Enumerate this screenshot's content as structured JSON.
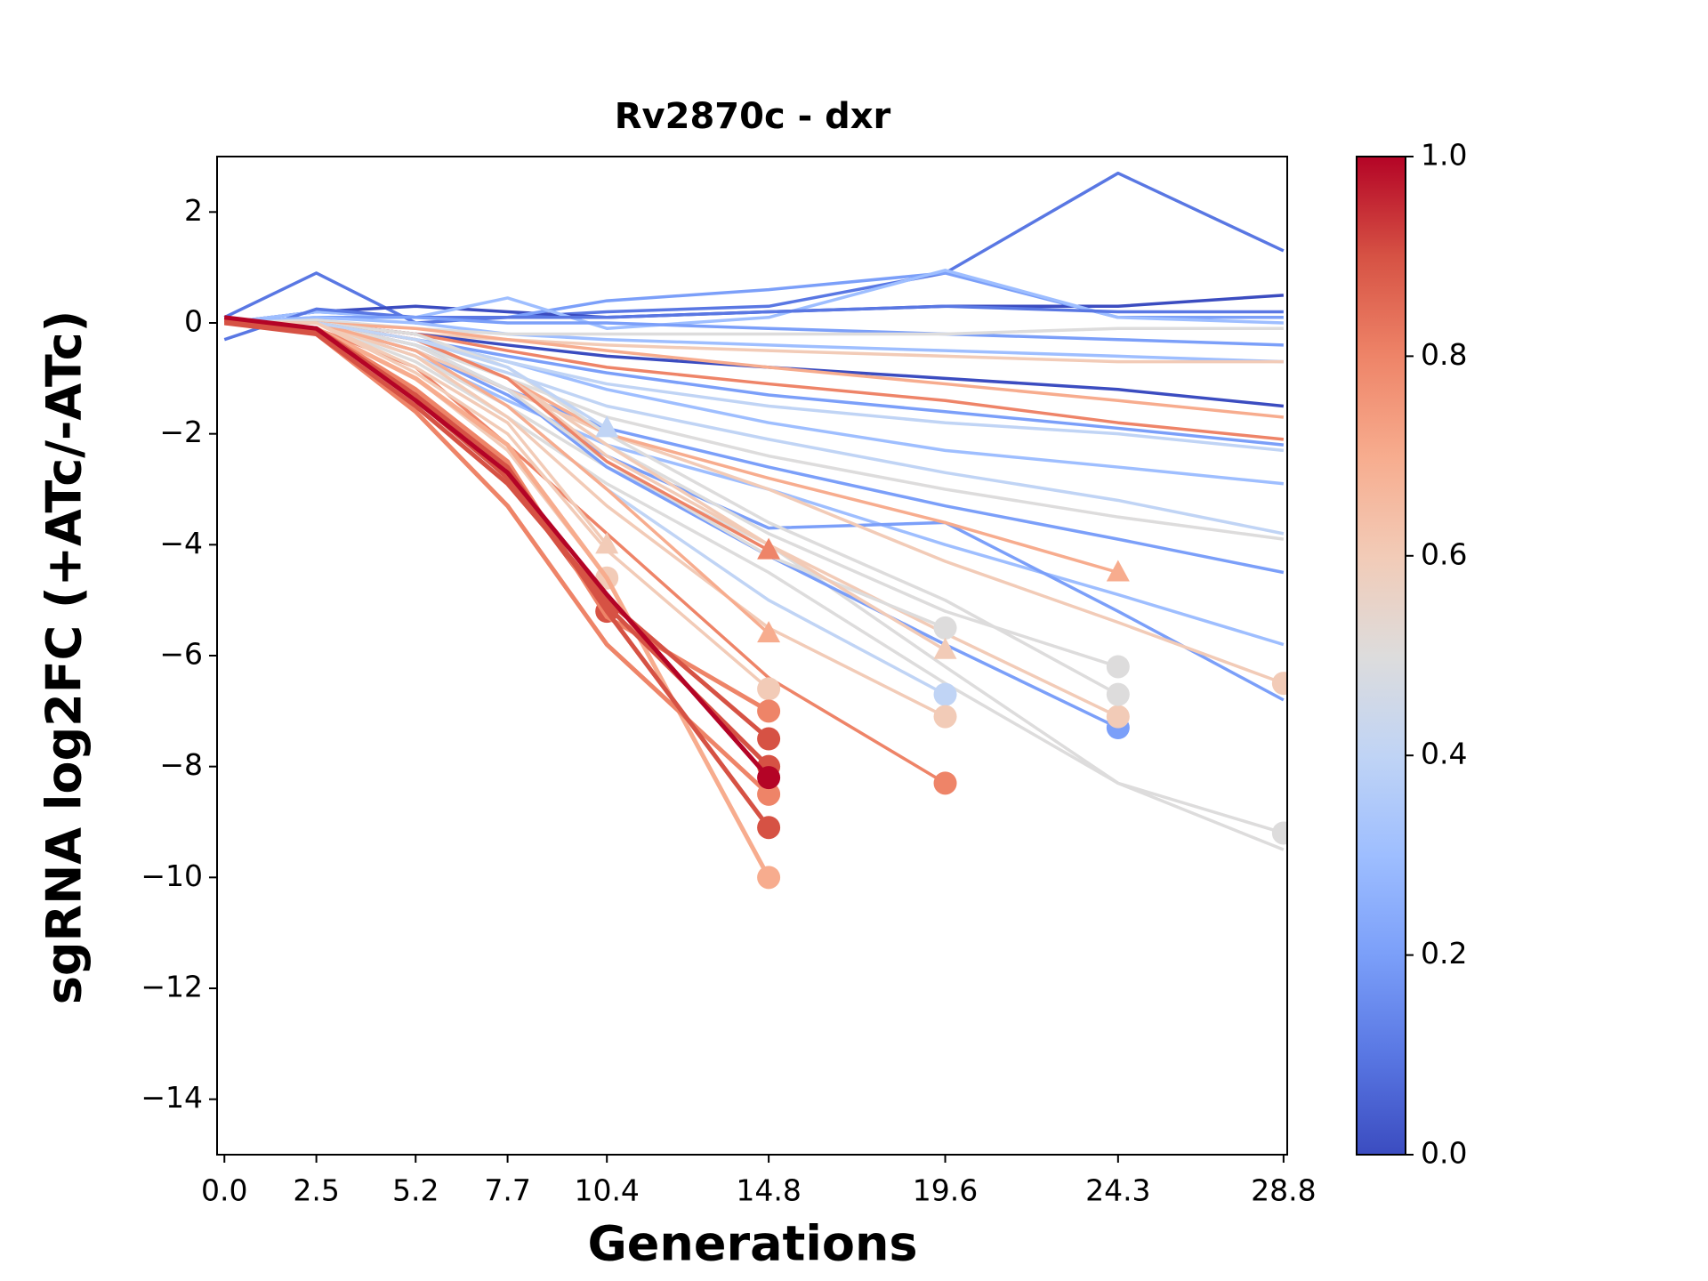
{
  "chart_data": {
    "type": "line",
    "title": "Rv2870c - dxr",
    "x_label": "Generations",
    "y_label": "sgRNA log2FC (+ATc/-ATc)",
    "x": [
      0,
      2.5,
      5.2,
      7.7,
      10.4,
      14.8,
      19.6,
      24.3,
      28.8
    ],
    "xlim": [
      -0.2,
      28.9
    ],
    "xticks": [
      {
        "value": 0,
        "label": "0.0"
      },
      2.5,
      5.2,
      7.7,
      10.4,
      14.8,
      19.6,
      24.3,
      28.8
    ],
    "ylim": [
      -15,
      3
    ],
    "yticks": [
      {
        "value": -14,
        "label": "−14"
      },
      {
        "value": -12,
        "label": "−12"
      },
      {
        "value": -10,
        "label": "−10"
      },
      {
        "value": -8,
        "label": "−8"
      },
      {
        "value": -6,
        "label": "−6"
      },
      {
        "value": -4,
        "label": "−4"
      },
      {
        "value": -2,
        "label": "−2"
      },
      0,
      2
    ],
    "grid": false,
    "colorbar": {
      "lim": [
        0,
        1
      ],
      "ticks": [
        {
          "value": 0,
          "label": "0.0"
        },
        {
          "value": 0.2,
          "label": "0.2"
        },
        {
          "value": 0.4,
          "label": "0.4"
        },
        {
          "value": 0.6,
          "label": "0.6"
        },
        {
          "value": 0.8,
          "label": "0.8"
        },
        {
          "value": 1,
          "label": "1.0"
        }
      ],
      "colors": [
        "#3b4cc0",
        "#5977e3",
        "#7b9ff9",
        "#9ebeff",
        "#c0d4f5",
        "#dddcdc",
        "#f2cbb7",
        "#f7ac8e",
        "#ee8468",
        "#d65244",
        "#b40426"
      ]
    },
    "series": [
      {
        "color": "#5977e3",
        "values": [
          0.1,
          0.9,
          0,
          0.1,
          0.2,
          0.3,
          0.9,
          2.7,
          1.3
        ]
      },
      {
        "color": "#3b4cc0",
        "values": [
          0,
          0.2,
          0.3,
          0.2,
          0.1,
          0.2,
          0.3,
          0.3,
          0.5
        ]
      },
      {
        "color": "#7b9ff9",
        "values": [
          0,
          0.2,
          0.1,
          0.1,
          0.4,
          0.6,
          0.9,
          0.1,
          0.1
        ]
      },
      {
        "color": "#9ebeff",
        "values": [
          0,
          0.2,
          0.1,
          0.45,
          -0.1,
          0.1,
          0.95,
          0.1,
          0
        ]
      },
      {
        "color": "#5977e3",
        "values": [
          -0.3,
          0.25,
          0.1,
          0.1,
          0.1,
          0.2,
          0.3,
          0.2,
          0.2
        ]
      },
      {
        "color": "#7b9ff9",
        "values": [
          0,
          0.1,
          0.1,
          0,
          0,
          -0.1,
          -0.2,
          -0.3,
          -0.4
        ]
      },
      {
        "color": "#9ebeff",
        "values": [
          0,
          0.1,
          0,
          -0.2,
          -0.3,
          -0.4,
          -0.5,
          -0.6,
          -0.7
        ]
      },
      {
        "color": "#dddcdc",
        "values": [
          0,
          0.05,
          -0.1,
          -0.2,
          -0.2,
          -0.2,
          -0.2,
          -0.1,
          -0.1
        ]
      },
      {
        "color": "#f2cbb7",
        "values": [
          0,
          0,
          -0.2,
          -0.3,
          -0.4,
          -0.5,
          -0.6,
          -0.7,
          -0.7
        ]
      },
      {
        "color": "#3b4cc0",
        "values": [
          0,
          0,
          -0.2,
          -0.4,
          -0.6,
          -0.8,
          -1.0,
          -1.2,
          -1.5
        ]
      },
      {
        "color": "#7b9ff9",
        "values": [
          0,
          0,
          -0.3,
          -0.6,
          -0.9,
          -1.3,
          -1.6,
          -1.9,
          -2.2
        ]
      },
      {
        "color": "#ee8468",
        "values": [
          0,
          0,
          -0.2,
          -0.5,
          -0.8,
          -1.1,
          -1.4,
          -1.8,
          -2.1
        ]
      },
      {
        "color": "#f7ac8e",
        "values": [
          0,
          0,
          -0.1,
          -0.3,
          -0.5,
          -0.8,
          -1.1,
          -1.4,
          -1.7
        ]
      },
      {
        "color": "#9ebeff",
        "values": [
          0,
          0,
          -0.3,
          -0.7,
          -1.2,
          -1.8,
          -2.3,
          -2.6,
          -2.9
        ]
      },
      {
        "color": "#c0d4f5",
        "values": [
          0,
          0,
          -0.4,
          -0.9,
          -1.5,
          -2.1,
          -2.7,
          -3.2,
          -3.8
        ]
      },
      {
        "color": "#7b9ff9",
        "values": [
          0,
          0,
          -0.5,
          -1.2,
          -1.9,
          -2.6,
          -3.3,
          -3.9,
          -4.5
        ]
      },
      {
        "color": "#dddcdc",
        "values": [
          0,
          0,
          -0.4,
          -1.0,
          -1.7,
          -2.4,
          -3.0,
          -3.5,
          -3.9
        ]
      },
      {
        "color": "#9ebeff",
        "values": [
          0,
          0,
          -0.6,
          -1.4,
          -2.2,
          -3.0,
          -4.0,
          -4.9,
          -5.8
        ]
      },
      {
        "color": "#c0d4f5",
        "values": [
          0,
          0,
          -0.3,
          -0.7,
          -1.1,
          -1.5,
          -1.8,
          -2.0,
          -2.3
        ]
      },
      {
        "color": "#7b9ff9",
        "values": [
          0,
          0,
          -0.5,
          -1.3,
          -2.4,
          -3.7,
          -3.6,
          -5.2,
          -6.8
        ]
      },
      {
        "color": "#dddcdc",
        "values": [
          0,
          0,
          -0.7,
          -1.7,
          -2.9,
          -4.5,
          -6.5,
          -8.3,
          -9.5
        ]
      },
      {
        "color": "#f2cbb7",
        "marker": "circle",
        "values": [
          0,
          0,
          -0.5,
          -1.2,
          -2.0,
          -3.0,
          -4.3,
          -5.4,
          -6.5
        ]
      },
      {
        "color": "#dddcdc",
        "marker": "circle",
        "values": [
          0,
          0,
          -0.6,
          -1.5,
          -2.6,
          -4.0,
          -6.2,
          -8.3,
          -9.2
        ]
      },
      {
        "color": "#f7ac8e",
        "marker": "triangle",
        "values": [
          0,
          0,
          -0.3,
          -1.0,
          -2.0,
          -2.8,
          -3.6,
          -4.5,
          null
        ]
      },
      {
        "color": "#7b9ff9",
        "marker": "circle",
        "values": [
          0,
          0,
          -0.4,
          -1.2,
          -2.6,
          -4.2,
          -5.8,
          -7.3,
          null
        ]
      },
      {
        "color": "#dddcdc",
        "marker": "circle",
        "values": [
          0,
          0,
          -0.3,
          -1.0,
          -2.2,
          -3.8,
          -5.2,
          -6.2,
          null
        ]
      },
      {
        "color": "#f2cbb7",
        "marker": "circle",
        "values": [
          0,
          0,
          -0.3,
          -1.0,
          -2.4,
          -4.0,
          -5.6,
          -7.1,
          null
        ]
      },
      {
        "color": "#dddcdc",
        "marker": "circle",
        "values": [
          0,
          0,
          -0.2,
          -0.8,
          -2.0,
          -3.6,
          -5.0,
          -6.7,
          null
        ]
      },
      {
        "color": "#ee8468",
        "marker": "circle",
        "values": [
          0,
          -0.1,
          -0.8,
          -2.2,
          -3.8,
          -6.4,
          -8.3,
          null,
          null
        ]
      },
      {
        "color": "#c0d4f5",
        "marker": "circle",
        "values": [
          0,
          0,
          -0.5,
          -1.5,
          -3.0,
          -5.0,
          -6.7,
          null,
          null
        ]
      },
      {
        "color": "#dddcdc",
        "marker": "circle",
        "values": [
          0,
          0,
          -0.4,
          -1.2,
          -2.5,
          -4.2,
          -5.5,
          null,
          null
        ]
      },
      {
        "color": "#f2cbb7",
        "marker": "circle",
        "values": [
          0,
          0,
          -0.6,
          -1.7,
          -3.3,
          -5.5,
          -7.1,
          null,
          null
        ]
      },
      {
        "color": "#f2cbb7",
        "marker": "triangle",
        "values": [
          0,
          0,
          -0.3,
          -1.0,
          -2.2,
          -4.0,
          -5.9,
          null,
          null
        ]
      },
      {
        "color": "#f7ac8e",
        "marker": "triangle",
        "values": [
          0,
          0,
          -0.5,
          -1.5,
          -3.0,
          -5.6,
          null,
          null,
          null
        ]
      },
      {
        "color": "#ee8468",
        "marker": "triangle",
        "values": [
          0,
          0,
          -0.3,
          -1.0,
          -2.5,
          -4.1,
          null,
          null,
          null
        ]
      },
      {
        "color": "#c0d4f5",
        "marker": "triangle",
        "values": [
          0,
          0,
          -0.3,
          -0.8,
          -1.9,
          null,
          null,
          null,
          null
        ]
      },
      {
        "color": "#f2cbb7",
        "marker": "triangle",
        "values": [
          0,
          0,
          -0.8,
          -1.8,
          -4.0,
          null,
          null,
          null,
          null
        ]
      },
      {
        "color": "#f2cbb7",
        "marker": "circle",
        "values": [
          0,
          -0.1,
          -1.0,
          -2.3,
          -4.6,
          null,
          null,
          null,
          null
        ]
      },
      {
        "color": "#d65244",
        "marker": "circle",
        "values": [
          0.1,
          -0.1,
          -1.4,
          -2.8,
          -5.2,
          null,
          null,
          null,
          null
        ]
      },
      {
        "color": "#f2cbb7",
        "marker": "circle",
        "values": [
          0,
          0,
          -0.9,
          -2.0,
          -4.1,
          -6.6,
          null,
          null,
          null
        ]
      },
      {
        "color": "#f7ac8e",
        "marker": "circle",
        "values": [
          0,
          -0.1,
          -1.0,
          -2.2,
          -4.6,
          -10.0,
          null,
          null,
          null
        ]
      },
      {
        "color": "#ee8468",
        "marker": "circle",
        "values": [
          0,
          -0.1,
          -1.2,
          -2.5,
          -5.3,
          -7.0,
          null,
          null,
          null
        ]
      },
      {
        "color": "#ee8468",
        "marker": "circle",
        "values": [
          0.1,
          -0.2,
          -1.6,
          -3.3,
          -5.8,
          -8.5,
          null,
          null,
          null
        ]
      },
      {
        "color": "#d65244",
        "marker": "circle",
        "values": [
          0,
          -0.2,
          -1.5,
          -2.9,
          -5.0,
          -7.5,
          null,
          null,
          null
        ]
      },
      {
        "color": "#d65244",
        "marker": "circle",
        "values": [
          0.05,
          -0.1,
          -1.3,
          -2.8,
          -5.1,
          -8.0,
          null,
          null,
          null
        ]
      },
      {
        "color": "#d65244",
        "marker": "circle",
        "values": [
          0.05,
          -0.15,
          -1.3,
          -2.6,
          -5.2,
          -9.1,
          null,
          null,
          null
        ]
      },
      {
        "color": "#b40426",
        "marker": "circle",
        "values": [
          0.1,
          -0.1,
          -1.4,
          -2.7,
          -4.9,
          -8.2,
          null,
          null,
          null
        ]
      }
    ]
  }
}
